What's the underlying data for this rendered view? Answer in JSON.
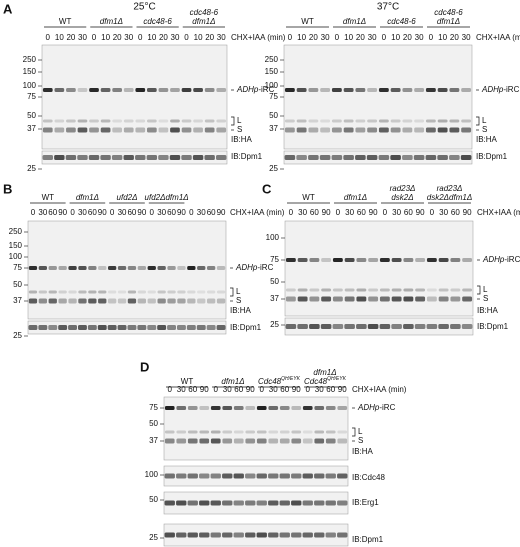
{
  "panels": [
    {
      "label": "A",
      "subpanels": [
        {
          "title": "25°C",
          "time_caption": "CHX+IAA (min)",
          "times": [
            "0",
            "10",
            "20",
            "30"
          ],
          "groups": [
            {
              "lines": [
                "WT"
              ],
              "italic": false
            },
            {
              "lines": [
                "dfm1Δ"
              ],
              "italic": true
            },
            {
              "lines": [
                "cdc48-6"
              ],
              "italic": true
            },
            {
              "lines": [
                "cdc48-6",
                "dfm1Δ"
              ],
              "italic": true
            }
          ],
          "blots": [
            {
              "markers": [
                "250",
                "150",
                "100",
                "75",
                "50",
                "37"
              ],
              "annotations": [
                {
                  "italic": "ADHp",
                  "text": "-iRC"
                },
                {
                  "text": "L",
                  "bracket": true
                },
                {
                  "text": "S"
                }
              ],
              "label": "IB:HA"
            },
            {
              "markers": [
                "25"
              ],
              "annotations": [],
              "label": "IB:Dpm1"
            }
          ]
        },
        {
          "title": "37°C",
          "time_caption": "CHX+IAA (min)",
          "times": [
            "0",
            "10",
            "20",
            "30"
          ],
          "groups": [
            {
              "lines": [
                "WT"
              ],
              "italic": false
            },
            {
              "lines": [
                "dfm1Δ"
              ],
              "italic": true
            },
            {
              "lines": [
                "cdc48-6"
              ],
              "italic": true
            },
            {
              "lines": [
                "cdc48-6",
                "dfm1Δ"
              ],
              "italic": true
            }
          ],
          "blots": [
            {
              "markers": [
                "250",
                "150",
                "100",
                "75",
                "50",
                "37"
              ],
              "annotations": [
                {
                  "italic": "ADHp",
                  "text": "-iRC"
                },
                {
                  "text": "L",
                  "bracket": true
                },
                {
                  "text": "S"
                }
              ],
              "label": "IB:HA"
            },
            {
              "markers": [
                "25"
              ],
              "annotations": [],
              "label": "IB:Dpm1"
            }
          ]
        }
      ]
    },
    {
      "label": "B",
      "subpanels": [
        {
          "time_caption": "CHX+IAA (min)",
          "times": [
            "0",
            "30",
            "60",
            "90"
          ],
          "groups": [
            {
              "lines": [
                "WT"
              ],
              "italic": false
            },
            {
              "lines": [
                "dfm1Δ"
              ],
              "italic": true
            },
            {
              "lines": [
                "ufd2Δ"
              ],
              "italic": true
            },
            {
              "lines": [
                "ufd2Δdfm1Δ"
              ],
              "italic": true
            },
            {
              "lines": [],
              "italic": false
            }
          ],
          "blots": [
            {
              "markers": [
                "250",
                "150",
                "100",
                "75",
                "50",
                "37"
              ],
              "annotations": [
                {
                  "italic": "ADHp",
                  "text": "-iRC"
                },
                {
                  "text": "L",
                  "bracket": true
                },
                {
                  "text": "S"
                }
              ],
              "label": "IB:HA"
            },
            {
              "markers": [
                "25"
              ],
              "annotations": [],
              "label": "IB:Dpm1"
            }
          ]
        }
      ]
    },
    {
      "label": "C",
      "subpanels": [
        {
          "time_caption": "CHX+IAA (min)",
          "times": [
            "0",
            "30",
            "60",
            "90"
          ],
          "groups": [
            {
              "lines": [
                "WT"
              ],
              "italic": false
            },
            {
              "lines": [
                "dfm1Δ"
              ],
              "italic": true
            },
            {
              "lines": [
                "rad23Δ",
                "dsk2Δ"
              ],
              "italic": true
            },
            {
              "lines": [
                "rad23Δ",
                "dsk2Δdfm1Δ"
              ],
              "italic": true
            }
          ],
          "blots": [
            {
              "markers": [
                "100",
                "75",
                "50",
                "37"
              ],
              "annotations": [
                {
                  "italic": "ADHp",
                  "text": "-iRC"
                },
                {
                  "text": "L",
                  "bracket": true
                },
                {
                  "text": "S"
                }
              ],
              "label": "IB:HA"
            },
            {
              "markers": [
                "25"
              ],
              "annotations": [],
              "label": "IB:Dpm1"
            }
          ]
        }
      ]
    },
    {
      "label": "D",
      "subpanels": [
        {
          "time_caption": "CHX+IAA (min)",
          "times": [
            "0",
            "30",
            "60",
            "90"
          ],
          "groups": [
            {
              "lines": [
                "WT"
              ],
              "italic": false
            },
            {
              "lines": [
                "dfm1Δ"
              ],
              "italic": true
            },
            {
              "lines": [
                {
                  "text": "Cdc48",
                  "sup": "QH/EYK"
                }
              ],
              "italic": true
            },
            {
              "lines": [
                "dfm1Δ",
                {
                  "text": "Cdc48",
                  "sup": "QH/EYK"
                }
              ],
              "italic": true
            }
          ],
          "blots": [
            {
              "markers": [
                "75",
                "50",
                "37"
              ],
              "annotations": [
                {
                  "italic": "ADHp",
                  "text": "-iRC"
                },
                {
                  "text": "L",
                  "bracket": true
                },
                {
                  "text": "S"
                }
              ],
              "label": "IB:HA"
            },
            {
              "markers": [
                "100"
              ],
              "annotations": [],
              "label": "IB:Cdc48"
            },
            {
              "markers": [
                "50"
              ],
              "annotations": [],
              "label": "IB:Erg1"
            },
            {
              "markers": [
                "25"
              ],
              "annotations": [],
              "label": "IB:Dpm1"
            }
          ]
        }
      ]
    }
  ]
}
